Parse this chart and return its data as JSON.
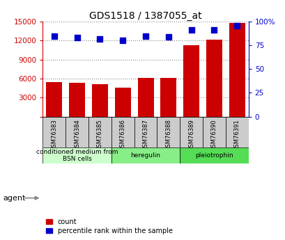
{
  "title": "GDS1518 / 1387055_at",
  "samples": [
    "GSM76383",
    "GSM76384",
    "GSM76385",
    "GSM76386",
    "GSM76387",
    "GSM76388",
    "GSM76389",
    "GSM76390",
    "GSM76391"
  ],
  "counts": [
    5500,
    5300,
    5100,
    4600,
    6100,
    6100,
    11300,
    12200,
    14800
  ],
  "percentiles": [
    85,
    83,
    82,
    80,
    85,
    84,
    91,
    91,
    96
  ],
  "groups": [
    {
      "label": "conditioned medium from\nBSN cells",
      "start": 0,
      "end": 3,
      "color": "#ccffcc"
    },
    {
      "label": "heregulin",
      "start": 3,
      "end": 6,
      "color": "#88ee88"
    },
    {
      "label": "pleiotrophin",
      "start": 6,
      "end": 9,
      "color": "#55dd55"
    }
  ],
  "bar_color": "#cc0000",
  "dot_color": "#0000cc",
  "ylim_left": [
    0,
    15000
  ],
  "ylim_right": [
    0,
    100
  ],
  "yticks_left": [
    0,
    3000,
    6000,
    9000,
    12000,
    15000
  ],
  "ytick_labels_left": [
    "",
    "3000",
    "6000",
    "9000",
    "12000",
    "15000"
  ],
  "yticks_right": [
    0,
    25,
    50,
    75,
    100
  ],
  "ytick_labels_right": [
    "0",
    "25",
    "50",
    "75",
    "100%"
  ],
  "left_axis_color": "#cc0000",
  "right_axis_color": "#0000cc",
  "agent_label": "agent",
  "legend_count_label": "count",
  "legend_percentile_label": "percentile rank within the sample",
  "grid_color": "#888888",
  "bg_color": "#ffffff",
  "plot_bg_color": "#ffffff",
  "sample_box_color": "#cccccc",
  "bar_width": 0.7,
  "dot_size": 40,
  "agent_arrow_color": "#888888"
}
